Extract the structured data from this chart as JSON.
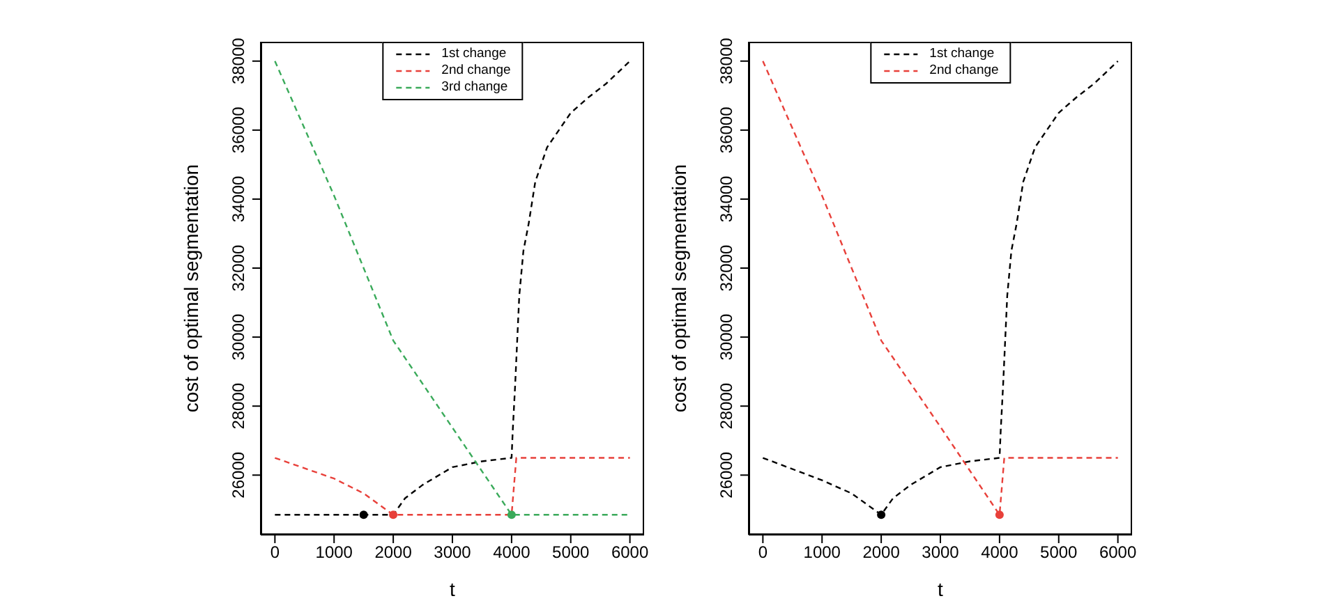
{
  "chart_data": [
    {
      "type": "line",
      "xlabel": "t",
      "ylabel": "cost of optimal segmentation",
      "xlim": [
        -240,
        6240
      ],
      "ylim": [
        24270,
        38560
      ],
      "xticks": [
        0,
        1000,
        2000,
        3000,
        4000,
        5000,
        6000
      ],
      "yticks": [
        26000,
        28000,
        30000,
        32000,
        34000,
        36000,
        38000
      ],
      "legend": "top",
      "line_style": "dashed",
      "series": [
        {
          "name": "1st change",
          "color": "#000000",
          "x": [
            0,
            1500,
            2000,
            2200,
            2500,
            3000,
            3500,
            4000,
            4020,
            4060,
            4130,
            4200,
            4290,
            4400,
            4600,
            4800,
            5000,
            5300,
            5600,
            6000
          ],
          "values": [
            24850,
            24850,
            24850,
            25330,
            25720,
            26230,
            26400,
            26500,
            27300,
            28600,
            31200,
            32500,
            33300,
            34500,
            35500,
            36000,
            36500,
            36950,
            37350,
            38000
          ]
        },
        {
          "name": "2nd change",
          "color": "#e8403a",
          "x": [
            0,
            1000,
            1500,
            2000,
            3000,
            4000,
            4080,
            6000
          ],
          "values": [
            26500,
            25900,
            25470,
            24850,
            24850,
            24850,
            26500,
            26500
          ]
        },
        {
          "name": "3rd change",
          "color": "#3aaa5a",
          "x": [
            0,
            1000,
            2000,
            4000,
            6000
          ],
          "values": [
            38000,
            34100,
            29900,
            24850,
            24850
          ]
        },
        {
          "type": "scatter",
          "color": "#000000",
          "x": [
            1500
          ],
          "values": [
            24850
          ]
        },
        {
          "type": "scatter",
          "color": "#e8403a",
          "x": [
            2000
          ],
          "values": [
            24850
          ]
        },
        {
          "type": "scatter",
          "color": "#3aaa5a",
          "x": [
            4000
          ],
          "values": [
            24850
          ]
        }
      ]
    },
    {
      "type": "line",
      "xlabel": "t",
      "ylabel": "cost of optimal segmentation",
      "xlim": [
        -240,
        6240
      ],
      "ylim": [
        24270,
        38560
      ],
      "xticks": [
        0,
        1000,
        2000,
        3000,
        4000,
        5000,
        6000
      ],
      "yticks": [
        26000,
        28000,
        30000,
        32000,
        34000,
        36000,
        38000
      ],
      "legend": "top",
      "line_style": "dashed",
      "series": [
        {
          "name": "1st change",
          "color": "#000000",
          "x": [
            0,
            1000,
            1500,
            2000,
            2200,
            2500,
            3000,
            3500,
            4000,
            4020,
            4060,
            4130,
            4200,
            4290,
            4400,
            4600,
            4800,
            5000,
            5300,
            5600,
            6000
          ],
          "values": [
            26500,
            25850,
            25470,
            24850,
            25330,
            25720,
            26230,
            26400,
            26500,
            27300,
            28600,
            31200,
            32500,
            33300,
            34500,
            35500,
            36000,
            36500,
            36950,
            37350,
            38000
          ]
        },
        {
          "name": "2nd change",
          "color": "#e8403a",
          "x": [
            0,
            1000,
            2000,
            3000,
            4000,
            4080,
            6000
          ],
          "values": [
            38000,
            34100,
            29900,
            27400,
            24850,
            26500,
            26500
          ]
        },
        {
          "type": "scatter",
          "color": "#000000",
          "x": [
            2000
          ],
          "values": [
            24850
          ]
        },
        {
          "type": "scatter",
          "color": "#e8403a",
          "x": [
            4000
          ],
          "values": [
            24850
          ]
        }
      ]
    }
  ]
}
